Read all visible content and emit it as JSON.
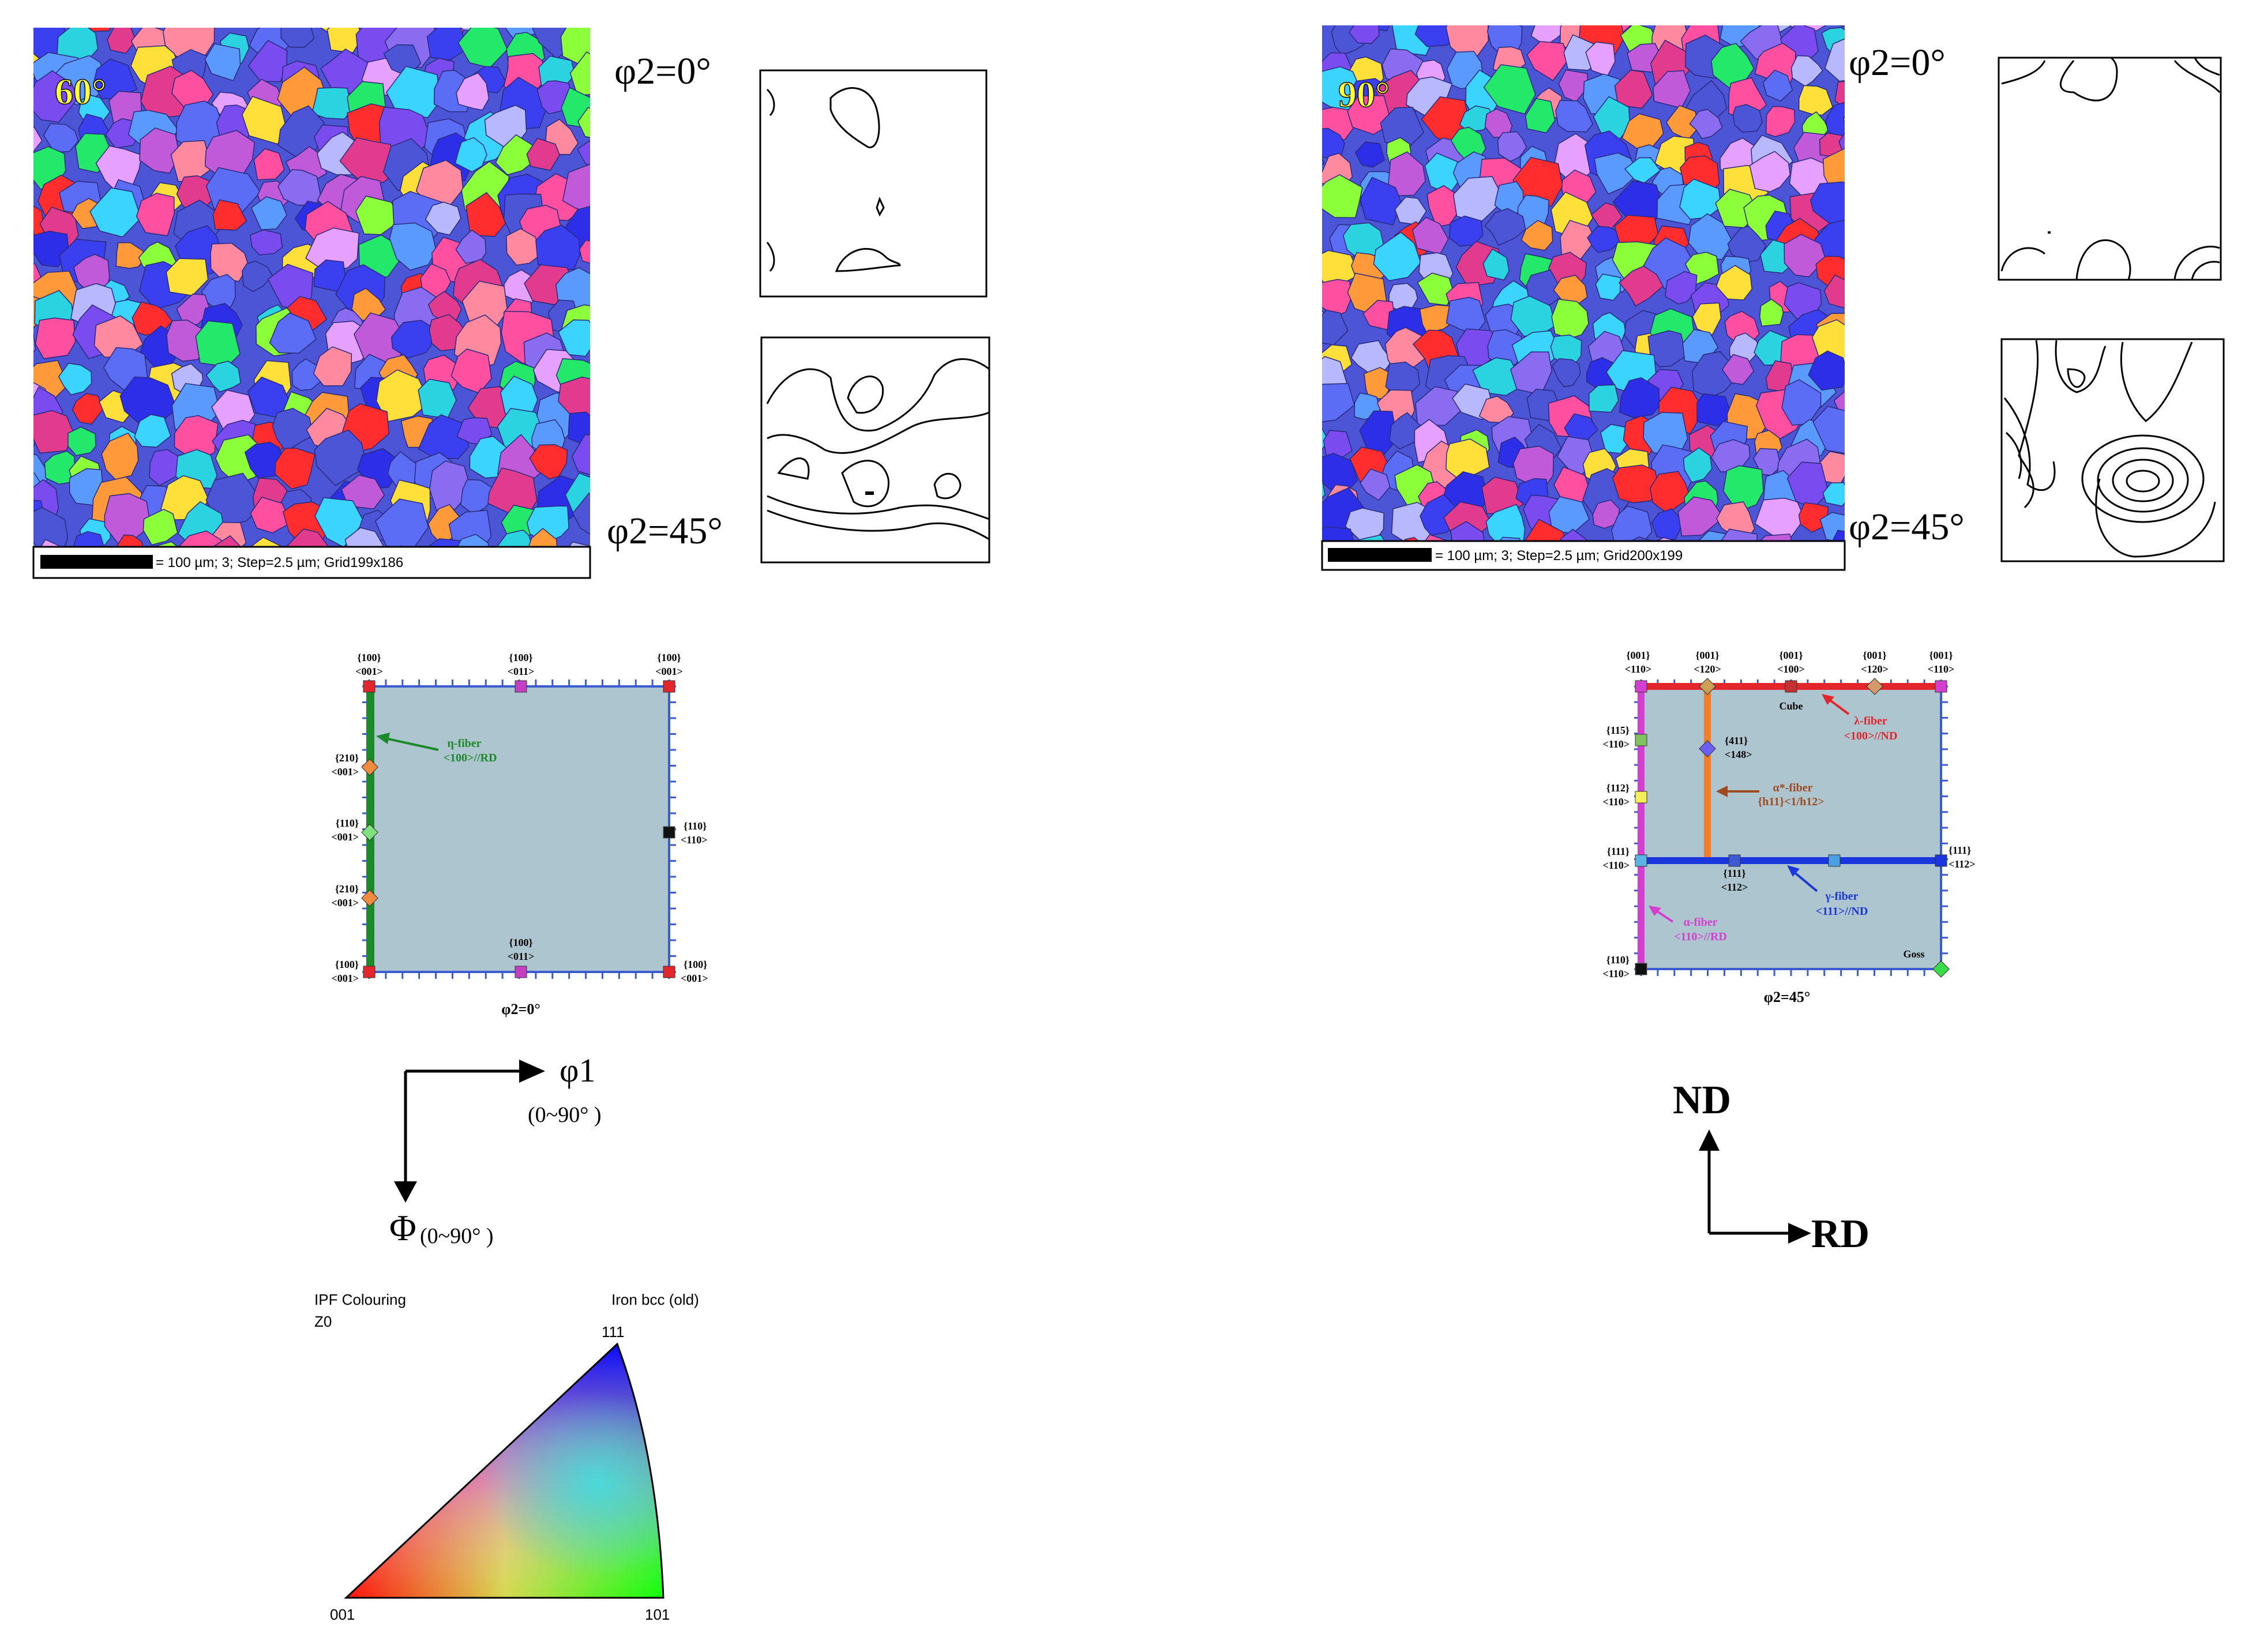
{
  "panels": {
    "left": {
      "map_label": "60°",
      "scalebar_text": "= 100 µm; 3; Step=2.5 µm; Grid199x186",
      "phi2_0_label": "φ2=0°",
      "phi2_45_label": "φ2=45°"
    },
    "right": {
      "map_label": "90°",
      "scalebar_text": "= 100 µm; 3; Step=2.5 µm; Grid200x199",
      "phi2_0_label": "φ2=0°",
      "phi2_45_label": "φ2=45°"
    }
  },
  "key_phi2_0": {
    "caption": "φ2=0°",
    "labels": {
      "tl": [
        "{100}",
        "<001>"
      ],
      "tm": [
        "{100}",
        "<011>"
      ],
      "tr": [
        "{100}",
        "<001>"
      ],
      "l1": [
        "{210}",
        "<001>"
      ],
      "l2": [
        "{110}",
        "<001>"
      ],
      "l3": [
        "{210}",
        "<001>"
      ],
      "r1": [
        "{110}",
        "<110>"
      ],
      "bl": [
        "{100}",
        "<001>"
      ],
      "bm": [
        "{100}",
        "<011>"
      ],
      "br": [
        "{100}",
        "<001>"
      ]
    },
    "fiber": [
      "η-fiber",
      "<100>//RD"
    ]
  },
  "key_phi2_45": {
    "caption": "φ2=45°",
    "labels": {
      "t1": [
        "{001}",
        "<110>"
      ],
      "t2": [
        "{001}",
        "<120>"
      ],
      "t3": [
        "{001}",
        "<100>"
      ],
      "t4": [
        "{001}",
        "<120>"
      ],
      "t5": [
        "{001}",
        "<110>"
      ],
      "l1": [
        "{115}",
        "<110>"
      ],
      "l2": [
        "{112}",
        "<110>"
      ],
      "l3": [
        "{111}",
        "<110>"
      ],
      "l4": [
        "{110}",
        "<110>"
      ],
      "m411": [
        "{411}",
        "<148>"
      ],
      "m111": [
        "{111}",
        "<112>"
      ],
      "r111": [
        "{111}",
        "<112>"
      ],
      "cube": "Cube",
      "goss": "Goss"
    },
    "fibers": {
      "lambda": [
        "λ-fiber",
        "<100>//ND"
      ],
      "alpha_star": [
        "α*-fiber",
        "{h11}<1/h12>"
      ],
      "gamma": [
        "γ-fiber",
        "<111>//ND"
      ],
      "alpha": [
        "α-fiber",
        "<110>//RD"
      ]
    }
  },
  "axes_euler": {
    "phi1": "φ1",
    "phi1_range": "(0~90° )",
    "Phi": "Φ",
    "Phi_range": "(0~90° )"
  },
  "axes_sample": {
    "nd": "ND",
    "rd": "RD"
  },
  "ipf": {
    "title": "IPF Colouring",
    "subtitle": "Z0",
    "right_title": "Iron bcc (old)",
    "corner_111": "111",
    "corner_001": "001",
    "corner_101": "101"
  },
  "colors": {
    "key_fill": "#adc5ce",
    "eta_fiber": "#1c8a2b",
    "lambda_fiber": "#e3262c",
    "alpha_star_fiber": "#f07e2a",
    "gamma_fiber": "#1a37dd",
    "alpha_fiber": "#d43fd0"
  }
}
